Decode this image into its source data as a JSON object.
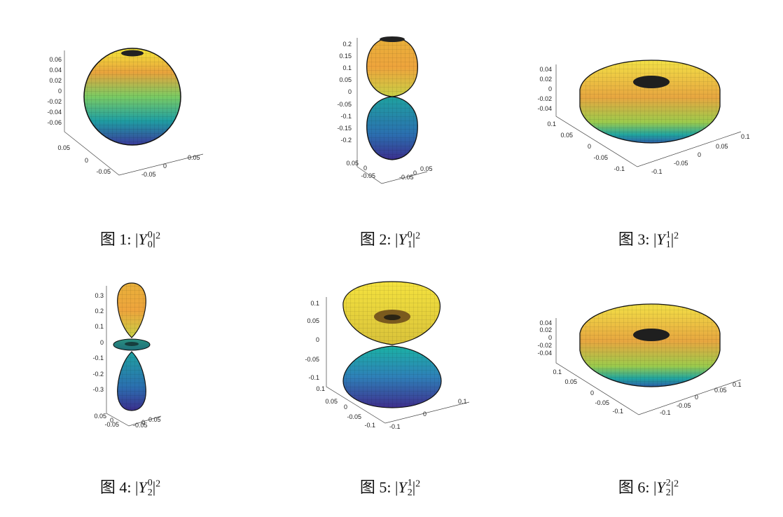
{
  "colors": {
    "top": "#f6e83a",
    "upper_mid": "#e3a33a",
    "mid": "#6fcf6a",
    "lower_mid": "#20a3a0",
    "bottom": "#3b3a9e",
    "mesh": "#000000"
  },
  "figures": [
    {
      "caption": {
        "label": "图 1:",
        "l": "0",
        "m": "0"
      },
      "z_ticks": [
        "0.06",
        "0.04",
        "0.02",
        "0",
        "-0.02",
        "-0.04",
        "-0.06"
      ],
      "x_ticks": [
        "0.05",
        "0",
        "-0.05"
      ],
      "y_ticks": [
        "-0.05",
        "0",
        "0.05"
      ]
    },
    {
      "caption": {
        "label": "图 2:",
        "l": "1",
        "m": "0"
      },
      "z_ticks": [
        "0.2",
        "0.15",
        "0.1",
        "0.05",
        "0",
        "-0.05",
        "-0.1",
        "-0.15",
        "-0.2"
      ],
      "x_ticks": [
        "0.05",
        "0",
        "-0.05"
      ],
      "y_ticks": [
        "-0.05",
        "0",
        "0.05"
      ]
    },
    {
      "caption": {
        "label": "图 3:",
        "l": "1",
        "m": "1"
      },
      "z_ticks": [
        "0.04",
        "0.02",
        "0",
        "-0.02",
        "-0.04"
      ],
      "x_ticks": [
        "0.1",
        "0.05",
        "0",
        "-0.05",
        "-0.1"
      ],
      "y_ticks": [
        "-0.1",
        "-0.05",
        "0",
        "0.05",
        "0.1"
      ]
    },
    {
      "caption": {
        "label": "图 4:",
        "l": "2",
        "m": "0"
      },
      "z_ticks": [
        "0.3",
        "0.2",
        "0.1",
        "0",
        "-0.1",
        "-0.2",
        "-0.3"
      ],
      "x_ticks": [
        "0.05",
        "0",
        "-0.05"
      ],
      "y_ticks": [
        "-0.05",
        "0",
        "0.05"
      ]
    },
    {
      "caption": {
        "label": "图 5:",
        "l": "2",
        "m": "1"
      },
      "z_ticks": [
        "0.1",
        "0.05",
        "0",
        "-0.05",
        "-0.1"
      ],
      "x_ticks": [
        "0.1",
        "0.05",
        "0",
        "-0.05",
        "-0.1"
      ],
      "y_ticks": [
        "-0.1",
        "0",
        "0.1"
      ]
    },
    {
      "caption": {
        "label": "图 6:",
        "l": "2",
        "m": "2"
      },
      "z_ticks": [
        "0.04",
        "0.02",
        "0",
        "-0.02",
        "-0.04"
      ],
      "x_ticks": [
        "0.1",
        "0.05",
        "0",
        "-0.05",
        "-0.1"
      ],
      "y_ticks": [
        "-0.1",
        "-0.05",
        "0",
        "0.05",
        "0.1"
      ]
    }
  ]
}
